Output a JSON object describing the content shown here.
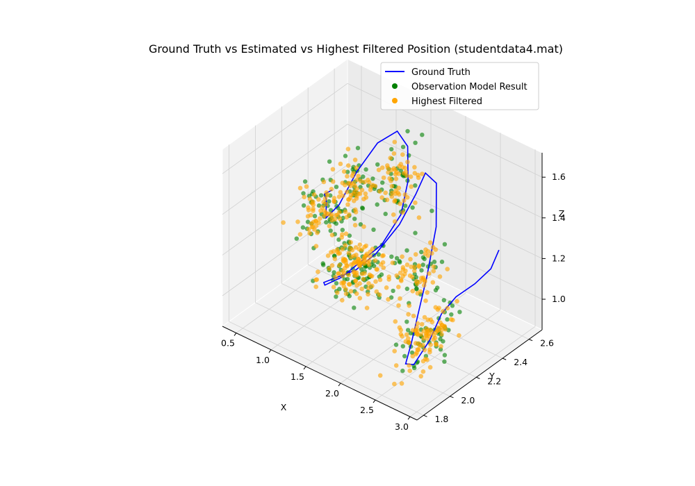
{
  "chart_data": {
    "type": "scatter3d",
    "title": "Ground Truth vs Estimated vs Highest Filtered Position (studentdata4.mat)",
    "xlabel": "X",
    "ylabel": "Y",
    "zlabel": "Z",
    "xlim": [
      0.3,
      3.1
    ],
    "ylim": [
      1.75,
      2.7
    ],
    "zlim": [
      0.85,
      1.72
    ],
    "xticks": [
      "0.5",
      "1.0",
      "1.5",
      "2.0",
      "2.5",
      "3.0"
    ],
    "yticks": [
      "1.8",
      "2.0",
      "2.2",
      "2.4",
      "2.6"
    ],
    "zticks": [
      "1.0",
      "1.2",
      "1.4",
      "1.6"
    ],
    "legend_position": "upper-right",
    "colors": {
      "ground_truth": "#0000ff",
      "observation": "#008000",
      "filtered": "#ffa500",
      "pane": "#f2f2f2",
      "grid": "#d0d0d0"
    },
    "series": [
      {
        "name": "Ground Truth",
        "kind": "line",
        "points": [
          [
            0.42,
            2.52,
            1.18
          ],
          [
            0.5,
            2.42,
            1.22
          ],
          [
            0.6,
            2.38,
            1.23
          ],
          [
            0.75,
            2.3,
            1.2
          ],
          [
            0.9,
            2.32,
            1.28
          ],
          [
            1.0,
            2.4,
            1.42
          ],
          [
            1.15,
            2.48,
            1.55
          ],
          [
            1.3,
            2.55,
            1.6
          ],
          [
            1.45,
            2.55,
            1.55
          ],
          [
            1.55,
            2.5,
            1.42
          ],
          [
            1.6,
            2.42,
            1.3
          ],
          [
            1.55,
            2.3,
            1.2
          ],
          [
            1.45,
            2.2,
            1.15
          ],
          [
            1.35,
            2.1,
            1.1
          ],
          [
            1.3,
            2.0,
            1.1
          ],
          [
            1.38,
            1.95,
            1.15
          ],
          [
            1.55,
            1.95,
            1.2
          ],
          [
            1.75,
            2.0,
            1.25
          ],
          [
            1.85,
            2.1,
            1.3
          ],
          [
            1.9,
            2.25,
            1.38
          ],
          [
            1.85,
            2.4,
            1.45
          ],
          [
            1.8,
            2.5,
            1.5
          ],
          [
            1.92,
            2.52,
            1.46
          ],
          [
            2.05,
            2.45,
            1.3
          ],
          [
            2.2,
            2.3,
            1.15
          ],
          [
            2.35,
            2.15,
            1.05
          ],
          [
            2.45,
            2.05,
            0.98
          ],
          [
            2.5,
            1.98,
            0.92
          ],
          [
            2.58,
            2.0,
            0.92
          ],
          [
            2.62,
            2.1,
            1.0
          ],
          [
            2.6,
            2.2,
            1.08
          ],
          [
            2.62,
            2.3,
            1.12
          ],
          [
            2.7,
            2.4,
            1.15
          ],
          [
            2.78,
            2.48,
            1.2
          ],
          [
            2.82,
            2.52,
            1.28
          ]
        ]
      },
      {
        "name": "Observation Model Result",
        "kind": "scatter"
      },
      {
        "name": "Highest Filtered",
        "kind": "scatter"
      }
    ],
    "clusters": [
      {
        "x": 0.6,
        "y": 2.35,
        "z": 1.2,
        "sx": 0.12,
        "sy": 0.06,
        "sz": 0.05,
        "n_obs": 40,
        "n_filt": 55
      },
      {
        "x": 1.0,
        "y": 2.35,
        "z": 1.35,
        "sx": 0.12,
        "sy": 0.06,
        "sz": 0.06,
        "n_obs": 40,
        "n_filt": 55
      },
      {
        "x": 1.25,
        "y": 2.2,
        "z": 1.12,
        "sx": 0.15,
        "sy": 0.08,
        "sz": 0.06,
        "n_obs": 45,
        "n_filt": 70
      },
      {
        "x": 1.5,
        "y": 2.45,
        "z": 1.4,
        "sx": 0.12,
        "sy": 0.06,
        "sz": 0.08,
        "n_obs": 40,
        "n_filt": 60
      },
      {
        "x": 1.75,
        "y": 2.05,
        "z": 1.2,
        "sx": 0.12,
        "sy": 0.08,
        "sz": 0.07,
        "n_obs": 40,
        "n_filt": 60
      },
      {
        "x": 2.05,
        "y": 2.3,
        "z": 1.15,
        "sx": 0.12,
        "sy": 0.08,
        "sz": 0.06,
        "n_obs": 35,
        "n_filt": 55
      },
      {
        "x": 2.55,
        "y": 2.1,
        "z": 1.0,
        "sx": 0.1,
        "sy": 0.1,
        "sz": 0.06,
        "n_obs": 50,
        "n_filt": 95
      }
    ]
  },
  "legend": {
    "items": [
      {
        "label": "Ground Truth",
        "marker": "line",
        "color": "#0000ff"
      },
      {
        "label": "Observation Model Result",
        "marker": "dot",
        "color": "#008000"
      },
      {
        "label": "Highest Filtered",
        "marker": "dot",
        "color": "#ffa500"
      }
    ]
  }
}
